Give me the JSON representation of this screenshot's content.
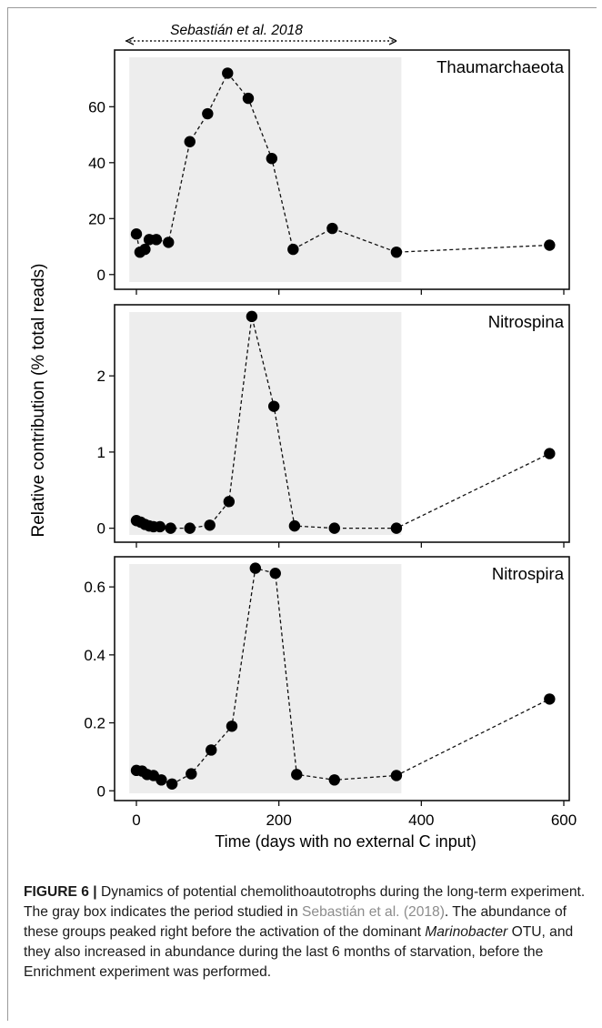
{
  "study_label": "Sebastián et al. 2018",
  "shading": {
    "x_start": -10,
    "x_end": 372
  },
  "chart_data": [
    {
      "type": "line",
      "title": "Thaumarchaeota",
      "xlim": [
        -20,
        610
      ],
      "ylim": [
        -3,
        78
      ],
      "yticks": [
        0,
        20,
        40,
        60
      ],
      "x": [
        0,
        5,
        12,
        18,
        28,
        45,
        75,
        100,
        128,
        157,
        190,
        220,
        275,
        365,
        580
      ],
      "y": [
        14.5,
        8,
        9,
        12.5,
        12.5,
        11.5,
        47.5,
        57.5,
        72,
        63,
        41.5,
        9,
        16.5,
        8,
        10.5
      ]
    },
    {
      "type": "line",
      "title": "Nitrospina",
      "xlim": [
        -20,
        610
      ],
      "ylim": [
        -0.1,
        2.85
      ],
      "yticks": [
        0,
        1,
        2
      ],
      "x": [
        0,
        6,
        12,
        18,
        24,
        33,
        48,
        75,
        103,
        130,
        162,
        193,
        222,
        278,
        365,
        580
      ],
      "y": [
        0.1,
        0.08,
        0.05,
        0.03,
        0.02,
        0.02,
        0.0,
        0.0,
        0.04,
        0.35,
        2.78,
        1.6,
        0.03,
        0.0,
        0.0,
        0.98
      ]
    },
    {
      "type": "line",
      "title": "Nitrospira",
      "xlim": [
        -20,
        610
      ],
      "ylim": [
        -0.01,
        0.67
      ],
      "yticks": [
        0,
        0.2,
        0.4,
        0.6
      ],
      "xticks": [
        0,
        200,
        400,
        600
      ],
      "xlabel": "Time (days with no external C input)",
      "x": [
        0,
        8,
        15,
        24,
        35,
        50,
        77,
        105,
        134,
        167,
        195,
        225,
        278,
        365,
        580
      ],
      "y": [
        0.06,
        0.058,
        0.048,
        0.045,
        0.032,
        0.02,
        0.05,
        0.12,
        0.19,
        0.655,
        0.64,
        0.048,
        0.032,
        0.045,
        0.27
      ]
    }
  ],
  "shared_ylabel": "Relative contribution (% total reads)",
  "caption": {
    "label": "FIGURE 6 |",
    "text1": " Dynamics of potential chemolithoautotrophs during the long-term experiment. The gray box indicates the period studied in ",
    "ref": "Sebastián et al. (2018)",
    "text2": ". The abundance of these groups peaked right before the activation of the dominant ",
    "genus": "Marinobacter",
    "text3": " OTU, and they also increased in abundance during the last 6 months of starvation, before the Enrichment experiment was performed."
  }
}
